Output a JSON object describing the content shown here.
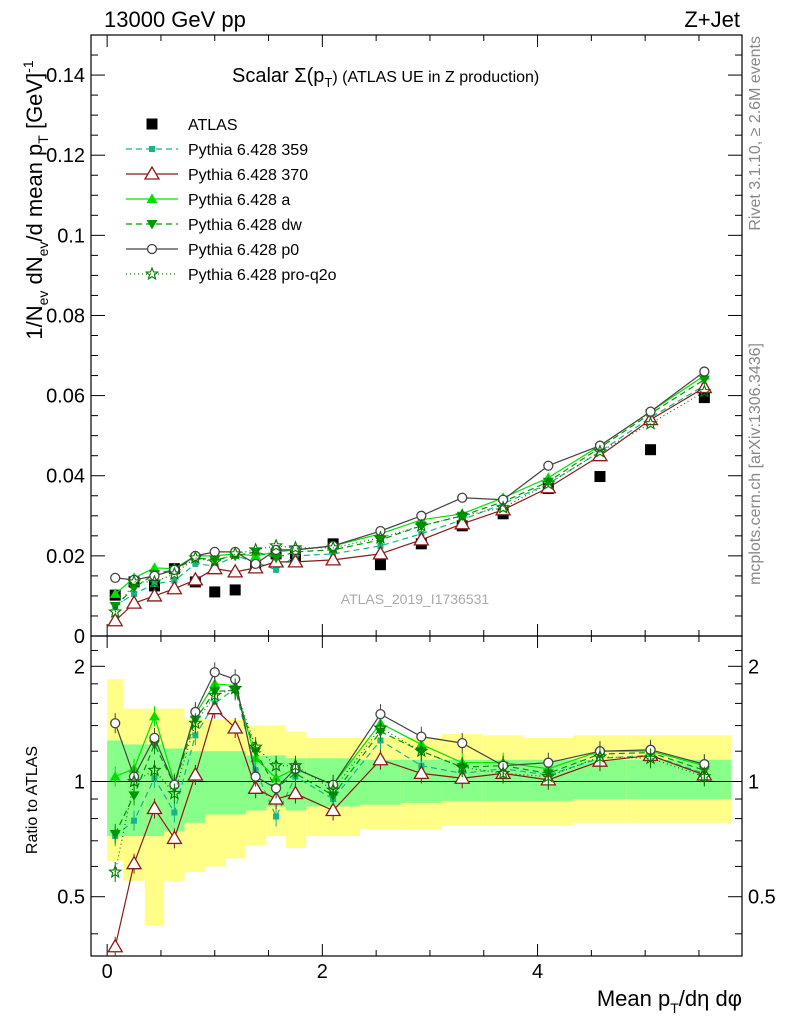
{
  "header": {
    "left": "13000 GeV pp",
    "right": "Z+Jet"
  },
  "plot_title": {
    "main": "Scalar Σ(p",
    "sub": "T",
    "tail": ") (ATLAS UE in Z production)"
  },
  "side_labels": {
    "rivet": "Rivet 3.1.10, ≥ 2.6M events",
    "mcplots": "mcplots.cern.ch [arXiv:1306.3436]"
  },
  "analysis_id": "ATLAS_2019_I1736531",
  "y_label_top": {
    "p1": "1/N",
    "s1": "ev",
    "p2": " dN",
    "s2": "ev",
    "p3": "/d mean p",
    "s3": "T",
    "p4": " [GeV]",
    "sup": "-1"
  },
  "y_label_bottom": "Ratio to ATLAS",
  "x_label": {
    "p1": "Mean p",
    "sub": "T",
    "p2": "/dη dφ"
  },
  "colors": {
    "atlas": "#000000",
    "p359": "#19b38c",
    "p370": "#8b1a1a",
    "pa": "#00e000",
    "pdw": "#009a00",
    "pp0": "#444444",
    "pq2o": "#007a00",
    "band_yellow": "#ffff88",
    "band_green": "#88ff88"
  },
  "chart_data": [
    {
      "type": "scatter",
      "panel": "main",
      "xlim": [
        -0.15,
        5.9
      ],
      "ylim": [
        0,
        0.15
      ],
      "x_ticks": [
        "0",
        "2",
        "4"
      ],
      "y_ticks": [
        "0",
        "0.02",
        "0.04",
        "0.06",
        "0.08",
        "0.1",
        "0.12",
        "0.14"
      ],
      "x": [
        0.075,
        0.25,
        0.44,
        0.625,
        0.82,
        1.0,
        1.19,
        1.38,
        1.57,
        1.75,
        2.1,
        2.54,
        2.92,
        3.3,
        3.68,
        4.1,
        4.58,
        5.05,
        5.55
      ],
      "series": [
        {
          "name": "ATLAS",
          "key": "atlas",
          "marker": "square",
          "values": [
            0.0102,
            0.0135,
            0.0125,
            0.0168,
            0.0135,
            0.011,
            0.0115,
            0.0172,
            0.0205,
            0.02,
            0.023,
            0.0178,
            0.023,
            0.0275,
            0.0305,
            0.0368,
            0.0398,
            0.0465,
            0.0595
          ]
        },
        {
          "name": "Pythia 6.428 359",
          "key": "p359",
          "marker": "small-square",
          "dash": "6,4",
          "values": [
            0.0075,
            0.0105,
            0.013,
            0.0138,
            0.018,
            0.0175,
            0.02,
            0.0185,
            0.0165,
            0.02,
            0.0205,
            0.0225,
            0.0255,
            0.029,
            0.033,
            0.038,
            0.046,
            0.0545,
            0.0625
          ]
        },
        {
          "name": "Pythia 6.428 370",
          "key": "p370",
          "marker": "open-triangle",
          "dash": "",
          "values": [
            0.0038,
            0.0082,
            0.01,
            0.0118,
            0.014,
            0.0168,
            0.016,
            0.017,
            0.0185,
            0.0185,
            0.019,
            0.0205,
            0.024,
            0.028,
            0.0315,
            0.037,
            0.045,
            0.054,
            0.062
          ]
        },
        {
          "name": "Pythia 6.428 a",
          "key": "pa",
          "marker": "triangle",
          "dash": "",
          "values": [
            0.0105,
            0.0145,
            0.017,
            0.0168,
            0.02,
            0.02,
            0.0205,
            0.02,
            0.021,
            0.0215,
            0.0225,
            0.0255,
            0.029,
            0.0305,
            0.0345,
            0.0395,
            0.0475,
            0.056,
            0.065
          ]
        },
        {
          "name": "Pythia 6.428 dw",
          "key": "pdw",
          "marker": "down-triangle",
          "dash": "6,4",
          "values": [
            0.0075,
            0.012,
            0.0155,
            0.0165,
            0.0195,
            0.019,
            0.02,
            0.021,
            0.0195,
            0.021,
            0.0215,
            0.024,
            0.0275,
            0.03,
            0.0335,
            0.0385,
            0.047,
            0.0555,
            0.064
          ]
        },
        {
          "name": "Pythia 6.428 p0",
          "key": "pp0",
          "marker": "open-circle",
          "dash": "",
          "values": [
            0.0145,
            0.014,
            0.015,
            0.0165,
            0.02,
            0.021,
            0.021,
            0.018,
            0.0215,
            0.0215,
            0.0225,
            0.0262,
            0.03,
            0.0345,
            0.034,
            0.0425,
            0.0475,
            0.056,
            0.066
          ]
        },
        {
          "name": "Pythia 6.428 pro-q2o",
          "key": "pq2o",
          "marker": "star",
          "dash": "1,3",
          "values": [
            0.006,
            0.0135,
            0.0135,
            0.0155,
            0.0195,
            0.0185,
            0.0205,
            0.0215,
            0.0225,
            0.022,
            0.022,
            0.0245,
            0.0275,
            0.03,
            0.032,
            0.038,
            0.046,
            0.053,
            0.061
          ]
        }
      ]
    },
    {
      "type": "scatter",
      "panel": "ratio",
      "xlim": [
        -0.15,
        5.9
      ],
      "ylim": [
        0.35,
        2.4
      ],
      "y_scale": "log",
      "y_ticks": [
        "0.5",
        "1",
        "2"
      ],
      "reference": 1,
      "band_edges": [
        0,
        0.15,
        0.35,
        0.53,
        0.72,
        0.91,
        1.1,
        1.29,
        1.48,
        1.66,
        1.85,
        2.35,
        2.73,
        3.11,
        3.49,
        3.87,
        4.33,
        4.83,
        5.3,
        5.8
      ],
      "band_yellow": {
        "lo": [
          0.62,
          0.55,
          0.42,
          0.55,
          0.58,
          0.6,
          0.63,
          0.68,
          0.72,
          0.67,
          0.72,
          0.75,
          0.75,
          0.77,
          0.77,
          0.77,
          0.78,
          0.78,
          0.78
        ],
        "hi": [
          1.85,
          1.55,
          1.55,
          1.55,
          1.45,
          1.45,
          1.45,
          1.4,
          1.4,
          1.35,
          1.3,
          1.3,
          1.3,
          1.33,
          1.32,
          1.3,
          1.32,
          1.32,
          1.32
        ]
      },
      "band_green": {
        "lo": [
          0.72,
          0.72,
          0.72,
          0.74,
          0.78,
          0.82,
          0.82,
          0.84,
          0.86,
          0.84,
          0.86,
          0.87,
          0.88,
          0.89,
          0.89,
          0.89,
          0.9,
          0.9,
          0.9
        ]
      },
      "band_green_hi": [
        1.28,
        1.25,
        1.25,
        1.22,
        1.2,
        1.2,
        1.2,
        1.17,
        1.17,
        1.15,
        1.15,
        1.14,
        1.14,
        1.14,
        1.14,
        1.14,
        1.14,
        1.14,
        1.14
      ],
      "series": [
        {
          "key": "p359",
          "marker": "small-square",
          "dash": "6,4",
          "values": [
            0.72,
            0.79,
            1.02,
            0.83,
            1.32,
            1.6,
            1.75,
            1.07,
            0.81,
            1.03,
            0.9,
            1.28,
            1.1,
            1.05,
            1.08,
            1.04,
            1.15,
            1.17,
            1.05
          ]
        },
        {
          "key": "p370",
          "marker": "open-triangle",
          "dash": "",
          "values": [
            0.37,
            0.61,
            0.85,
            0.71,
            1.04,
            1.55,
            1.38,
            0.96,
            0.9,
            0.93,
            0.84,
            1.14,
            1.05,
            1.02,
            1.05,
            1.01,
            1.13,
            1.17,
            1.04
          ]
        },
        {
          "key": "pa",
          "marker": "triangle",
          "dash": "",
          "values": [
            1.03,
            1.08,
            1.48,
            0.99,
            1.5,
            1.8,
            1.78,
            1.15,
            1.02,
            1.08,
            0.98,
            1.42,
            1.25,
            1.12,
            1.12,
            1.08,
            1.2,
            1.2,
            1.1
          ]
        },
        {
          "key": "pdw",
          "marker": "down-triangle",
          "dash": "6,4",
          "values": [
            0.73,
            0.92,
            1.25,
            0.98,
            1.45,
            1.72,
            1.73,
            1.2,
            0.96,
            1.05,
            0.92,
            1.35,
            1.2,
            1.09,
            1.1,
            1.05,
            1.18,
            1.19,
            1.07
          ]
        },
        {
          "key": "pp0",
          "marker": "open-circle",
          "dash": "",
          "values": [
            1.42,
            1.03,
            1.3,
            0.98,
            1.52,
            1.93,
            1.85,
            1.03,
            0.96,
            1.08,
            0.98,
            1.5,
            1.31,
            1.26,
            1.1,
            1.12,
            1.2,
            1.21,
            1.11
          ]
        },
        {
          "key": "pq2o",
          "marker": "star",
          "dash": "1,3",
          "values": [
            0.58,
            1.0,
            1.07,
            0.93,
            1.42,
            1.68,
            1.75,
            1.23,
            1.1,
            1.1,
            0.95,
            1.38,
            1.2,
            1.09,
            1.05,
            1.03,
            1.16,
            1.15,
            1.03
          ]
        }
      ]
    }
  ]
}
